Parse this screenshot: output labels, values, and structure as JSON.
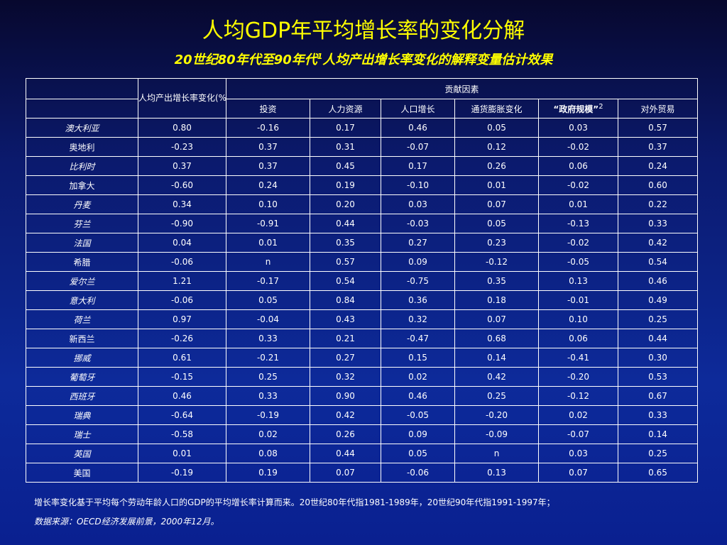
{
  "title": "人均GDP年平均增长率的变化分解",
  "subtitle": {
    "prefix": "20世纪80年代至90年代",
    "sup": "1",
    "suffix": "人均产出增长率变化的解释变量估计效果"
  },
  "table": {
    "gdp_header": "人均产出增长率变化(%)",
    "group_header": "贡献因素",
    "columns": [
      "投资",
      "人力资源",
      "人口增长",
      "通货膨胀变化",
      "“政府规模”",
      "对外贸易"
    ],
    "column5_sup": "2",
    "rows": [
      {
        "country": "澳大利亚",
        "gdp": "0.80",
        "values": [
          "-0.16",
          "0.17",
          "0.46",
          "0.05",
          "0.03",
          "0.57"
        ]
      },
      {
        "country": "奥地利",
        "gdp": "-0.23",
        "values": [
          "0.37",
          "0.31",
          "-0.07",
          "0.12",
          "-0.02",
          "0.37"
        ]
      },
      {
        "country": "比利时",
        "gdp": "0.37",
        "values": [
          "0.37",
          "0.45",
          "0.17",
          "0.26",
          "0.06",
          "0.24"
        ]
      },
      {
        "country": "加拿大",
        "gdp": "-0.60",
        "values": [
          "0.24",
          "0.19",
          "-0.10",
          "0.01",
          "-0.02",
          "0.60"
        ]
      },
      {
        "country": "丹麦",
        "gdp": "0.34",
        "values": [
          "0.10",
          "0.20",
          "0.03",
          "0.07",
          "0.01",
          "0.22"
        ]
      },
      {
        "country": "芬兰",
        "gdp": "-0.90",
        "values": [
          "-0.91",
          "0.44",
          "-0.03",
          "0.05",
          "-0.13",
          "0.33"
        ]
      },
      {
        "country": "法国",
        "gdp": "0.04",
        "values": [
          "0.01",
          "0.35",
          "0.27",
          "0.23",
          "-0.02",
          "0.42"
        ]
      },
      {
        "country": "希腊",
        "gdp": "-0.06",
        "values": [
          "n",
          "0.57",
          "0.09",
          "-0.12",
          "-0.05",
          "0.54"
        ]
      },
      {
        "country": "爱尔兰",
        "gdp": "1.21",
        "values": [
          "-0.17",
          "0.54",
          "-0.75",
          "0.35",
          "0.13",
          "0.46"
        ]
      },
      {
        "country": "意大利",
        "gdp": "-0.06",
        "values": [
          "0.05",
          "0.84",
          "0.36",
          "0.18",
          "-0.01",
          "0.49"
        ]
      },
      {
        "country": "荷兰",
        "gdp": "0.97",
        "values": [
          "-0.04",
          "0.43",
          "0.32",
          "0.07",
          "0.10",
          "0.25"
        ]
      },
      {
        "country": "新西兰",
        "gdp": "-0.26",
        "values": [
          "0.33",
          "0.21",
          "-0.47",
          "0.68",
          "0.06",
          "0.44"
        ]
      },
      {
        "country": "挪威",
        "gdp": "0.61",
        "values": [
          "-0.21",
          "0.27",
          "0.15",
          "0.14",
          "-0.41",
          "0.30"
        ]
      },
      {
        "country": "葡萄牙",
        "gdp": "-0.15",
        "values": [
          "0.25",
          "0.32",
          "0.02",
          "0.42",
          "-0.20",
          "0.53"
        ]
      },
      {
        "country": "西班牙",
        "gdp": "0.46",
        "values": [
          "0.33",
          "0.90",
          "0.46",
          "0.25",
          "-0.12",
          "0.67"
        ]
      },
      {
        "country": "瑞典",
        "gdp": "-0.64",
        "values": [
          "-0.19",
          "0.42",
          "-0.05",
          "-0.20",
          "0.02",
          "0.33"
        ]
      },
      {
        "country": "瑞士",
        "gdp": "-0.58",
        "values": [
          "0.02",
          "0.26",
          "0.09",
          "-0.09",
          "-0.07",
          "0.14"
        ]
      },
      {
        "country": "英国",
        "gdp": "0.01",
        "values": [
          "0.08",
          "0.44",
          "0.05",
          "n",
          "0.03",
          "0.25"
        ]
      },
      {
        "country": "美国",
        "gdp": "-0.19",
        "values": [
          "0.19",
          "0.07",
          "-0.06",
          "0.13",
          "0.07",
          "0.65"
        ]
      }
    ]
  },
  "footnote": "增长率变化基于平均每个劳动年龄人口的GDP的平均增长率计算而来。20世纪80年代指1981-1989年，20世纪90年代指1991-1997年；",
  "source": "数据来源：OECD经济发展前景，2000年12月。",
  "colors": {
    "title": "#ffff00",
    "text": "#ffffff",
    "background": "#0d2a9a"
  }
}
